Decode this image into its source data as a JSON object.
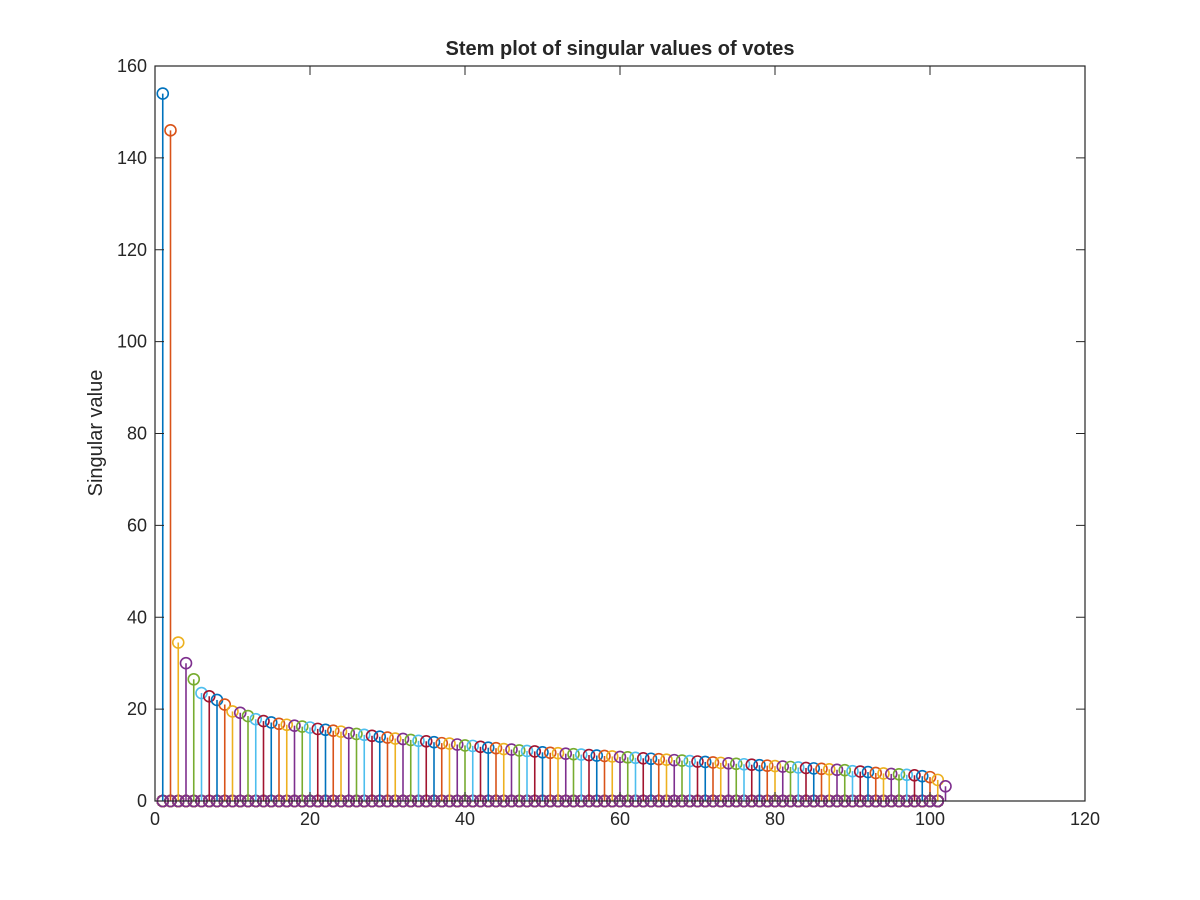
{
  "chart_data": {
    "type": "stem",
    "title": "Stem plot of singular values of votes",
    "xlabel": "",
    "ylabel": "Singular value",
    "xlim": [
      0,
      120
    ],
    "ylim": [
      0,
      160
    ],
    "xticks": [
      "0",
      "20",
      "40",
      "60",
      "80",
      "100",
      "120"
    ],
    "yticks": [
      "0",
      "20",
      "40",
      "60",
      "80",
      "100",
      "120",
      "140",
      "160"
    ],
    "grid": false,
    "legend": "none",
    "colors": [
      "#0072BD",
      "#D95319",
      "#EDB120",
      "#7E2F8E",
      "#77AC30",
      "#4DBEEE",
      "#A2142F"
    ],
    "n_points": 102,
    "diagonal_values": [
      154,
      146,
      34.5,
      30,
      26.5,
      23.5,
      22.8,
      22,
      21,
      19.5,
      19.2,
      18.5,
      17.8,
      17.4,
      17.1,
      16.8,
      16.6,
      16.4,
      16.2,
      16,
      15.7,
      15.5,
      15.3,
      15.1,
      14.8,
      14.6,
      14.4,
      14.2,
      14,
      13.8,
      13.6,
      13.5,
      13.3,
      13.1,
      13,
      12.8,
      12.6,
      12.5,
      12.3,
      12.1,
      12,
      11.8,
      11.6,
      11.5,
      11.3,
      11.2,
      11,
      10.9,
      10.8,
      10.6,
      10.5,
      10.4,
      10.3,
      10.2,
      10.1,
      10,
      9.9,
      9.8,
      9.7,
      9.6,
      9.5,
      9.4,
      9.3,
      9.2,
      9.1,
      9,
      8.9,
      8.8,
      8.7,
      8.6,
      8.5,
      8.4,
      8.3,
      8.2,
      8.1,
      8,
      7.9,
      7.8,
      7.7,
      7.6,
      7.5,
      7.4,
      7.3,
      7.2,
      7.1,
      7,
      6.9,
      6.8,
      6.7,
      6.5,
      6.4,
      6.3,
      6.1,
      6,
      5.9,
      5.8,
      5.7,
      5.6,
      5.4,
      5.2,
      4.6,
      3.2
    ],
    "zero_series_description": "each of the 102 columns also contributes stems at value 0 for x = 1..101"
  }
}
